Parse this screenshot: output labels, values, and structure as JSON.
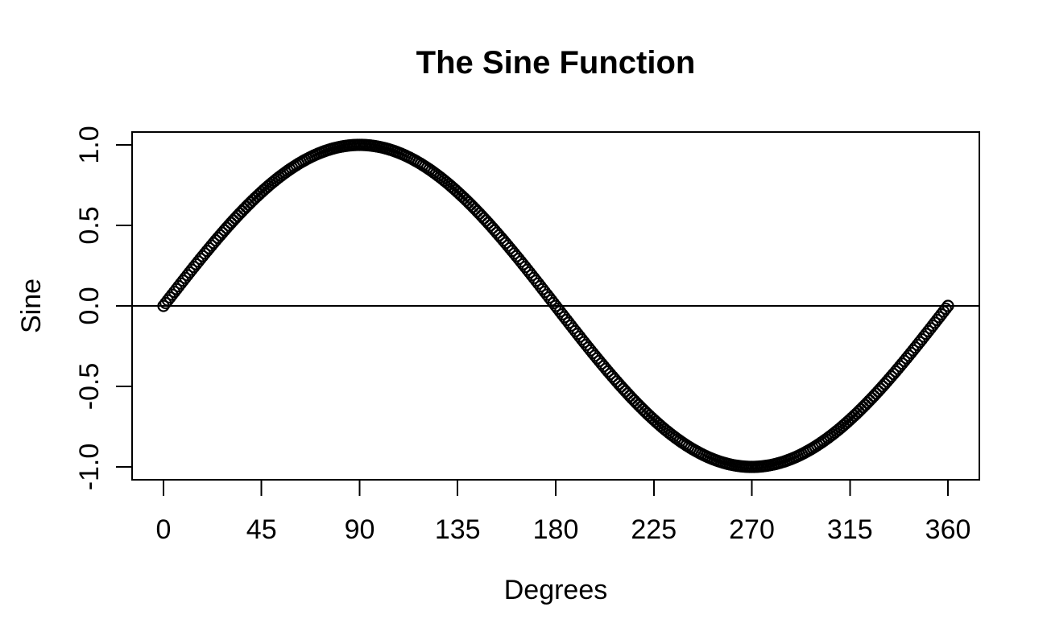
{
  "figure": {
    "background_color": "#ffffff",
    "foreground_color": "#000000"
  },
  "chart_data": {
    "type": "scatter",
    "title": "The Sine Function",
    "xlabel": "Degrees",
    "ylabel": "Sine",
    "marker": "open-circle",
    "marker_color": "#000000",
    "axis_color": "#000000",
    "grid": false,
    "legend": "none",
    "xlim": [
      0,
      360
    ],
    "ylim": [
      -1,
      1
    ],
    "axis_range_padding": 0.04,
    "x_ticks": {
      "values": [
        0,
        45,
        90,
        135,
        180,
        225,
        270,
        315,
        360
      ],
      "labels": [
        "0",
        "45",
        "90",
        "135",
        "180",
        "225",
        "270",
        "315",
        "360"
      ]
    },
    "y_ticks": {
      "values": [
        1,
        0.5,
        0,
        -0.5,
        -1
      ],
      "labels": [
        "1.0",
        "0.5",
        "0.0",
        "-0.5",
        "-1.0"
      ]
    },
    "reference_line": {
      "y": 0
    },
    "series": [
      {
        "name": "sine",
        "x_unit": "degrees",
        "x_start_deg": 0,
        "x_end_deg": 360,
        "x_step_deg": 1,
        "y_formula": "sin(x)"
      }
    ],
    "key_points": [
      [
        0,
        0
      ],
      [
        90,
        1
      ],
      [
        180,
        0
      ],
      [
        270,
        -1
      ],
      [
        360,
        0
      ]
    ]
  }
}
